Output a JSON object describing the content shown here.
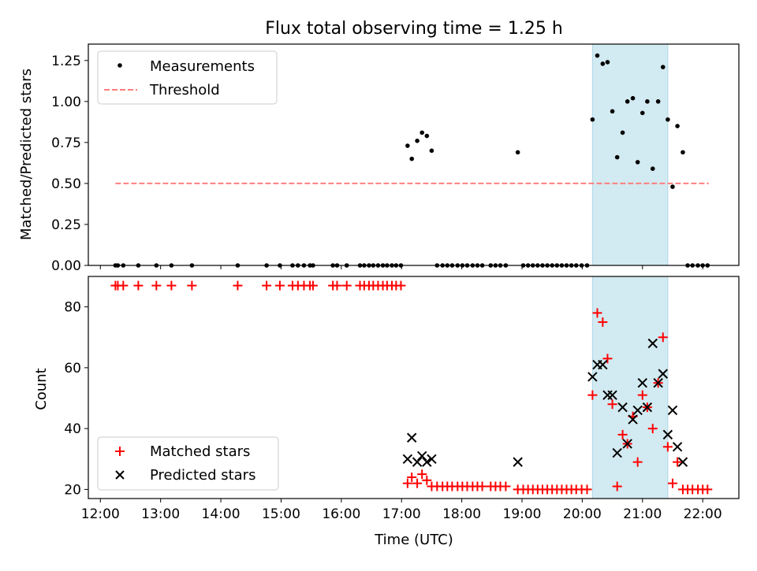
{
  "chart_data": {
    "type": "scatter",
    "title": "Flux total observing time = 1.25 h",
    "xlabel": "Time (UTC)",
    "x_unit": "hour of day (UTC)",
    "xlim": [
      11.8,
      22.6
    ],
    "xticks": [
      12,
      13,
      14,
      15,
      16,
      17,
      18,
      19,
      20,
      21,
      22
    ],
    "xtick_labels": [
      "12:00",
      "13:00",
      "14:00",
      "15:00",
      "16:00",
      "17:00",
      "18:00",
      "19:00",
      "20:00",
      "21:00",
      "22:00"
    ],
    "highlight_band": {
      "x0": 20.17,
      "x1": 21.42,
      "color": "#add8e6"
    },
    "top": {
      "ylabel": "Matched/Predicted stars",
      "ylim": [
        0,
        1.35
      ],
      "yticks": [
        0.0,
        0.25,
        0.5,
        0.75,
        1.0,
        1.25
      ],
      "ytick_labels": [
        "0.00",
        "0.25",
        "0.50",
        "0.75",
        "1.00",
        "1.25"
      ],
      "legend": {
        "location": "top-left",
        "entries": [
          "Measurements",
          "Threshold"
        ]
      },
      "threshold": {
        "name": "Threshold",
        "y": 0.5,
        "x_range": [
          12.25,
          22.1
        ],
        "color": "#ff7f7f"
      },
      "measurements": {
        "name": "Measurements",
        "color": "#000000",
        "x": [
          12.25,
          12.29,
          12.38,
          12.63,
          12.93,
          13.18,
          13.52,
          14.28,
          14.76,
          14.98,
          15.19,
          15.28,
          15.38,
          15.48,
          15.53,
          15.86,
          15.93,
          16.09,
          16.31,
          16.38,
          16.46,
          16.53,
          16.61,
          16.69,
          16.76,
          16.84,
          16.91,
          16.99,
          17.1,
          17.17,
          17.26,
          17.34,
          17.42,
          17.5,
          17.59,
          17.68,
          17.76,
          17.84,
          17.93,
          18.01,
          18.09,
          18.18,
          18.26,
          18.34,
          18.48,
          18.56,
          18.64,
          18.73,
          18.93,
          19.02,
          19.1,
          19.18,
          19.26,
          19.34,
          19.42,
          19.5,
          19.58,
          19.66,
          19.74,
          19.82,
          19.9,
          19.99,
          20.08,
          20.17,
          20.25,
          20.34,
          20.42,
          20.5,
          20.58,
          20.67,
          20.75,
          20.84,
          20.92,
          21.0,
          21.08,
          21.17,
          21.26,
          21.34,
          21.42,
          21.5,
          21.58,
          21.67,
          21.75,
          21.83,
          21.92,
          22.0,
          22.08
        ],
        "y": [
          0,
          0,
          0,
          0,
          0,
          0,
          0,
          0,
          0,
          0,
          0,
          0,
          0,
          0,
          0,
          0,
          0,
          0,
          0,
          0,
          0,
          0,
          0,
          0,
          0,
          0,
          0,
          0,
          0.73,
          0.65,
          0.76,
          0.81,
          0.79,
          0.7,
          0,
          0,
          0,
          0,
          0,
          0,
          0,
          0,
          0,
          0,
          0,
          0,
          0,
          0,
          0.69,
          0,
          0,
          0,
          0,
          0,
          0,
          0,
          0,
          0,
          0,
          0,
          0,
          0,
          0,
          0.89,
          1.28,
          1.23,
          1.24,
          0.94,
          0.66,
          0.81,
          1.0,
          1.02,
          0.63,
          0.93,
          1.0,
          0.59,
          1.0,
          1.21,
          0.89,
          0.48,
          0.85,
          0.69,
          0,
          0,
          0,
          0,
          0
        ]
      }
    },
    "bottom": {
      "ylabel": "Count",
      "ylim": [
        17,
        90
      ],
      "yticks": [
        20,
        40,
        60,
        80
      ],
      "ytick_labels": [
        "20",
        "40",
        "60",
        "80"
      ],
      "legend": {
        "location": "bottom-left",
        "entries": [
          "Matched stars",
          "Predicted stars"
        ]
      },
      "matched": {
        "name": "Matched stars",
        "color": "#ff0000",
        "x": [
          12.25,
          12.29,
          12.38,
          12.63,
          12.93,
          13.18,
          13.52,
          14.28,
          14.76,
          14.98,
          15.19,
          15.28,
          15.38,
          15.48,
          15.53,
          15.86,
          15.93,
          16.09,
          16.31,
          16.38,
          16.46,
          16.53,
          16.61,
          16.69,
          16.76,
          16.84,
          16.91,
          16.99,
          17.1,
          17.17,
          17.26,
          17.34,
          17.42,
          17.5,
          17.59,
          17.68,
          17.76,
          17.84,
          17.93,
          18.01,
          18.09,
          18.18,
          18.26,
          18.34,
          18.48,
          18.56,
          18.64,
          18.73,
          18.93,
          19.02,
          19.1,
          19.18,
          19.26,
          19.34,
          19.42,
          19.5,
          19.58,
          19.66,
          19.74,
          19.82,
          19.9,
          19.99,
          20.08,
          20.17,
          20.25,
          20.34,
          20.42,
          20.5,
          20.58,
          20.67,
          20.75,
          20.84,
          20.92,
          21.0,
          21.08,
          21.17,
          21.26,
          21.34,
          21.42,
          21.5,
          21.58,
          21.67,
          21.75,
          21.83,
          21.92,
          22.0,
          22.08
        ],
        "y": [
          87,
          87,
          87,
          87,
          87,
          87,
          87,
          87,
          87,
          87,
          87,
          87,
          87,
          87,
          87,
          87,
          87,
          87,
          87,
          87,
          87,
          87,
          87,
          87,
          87,
          87,
          87,
          87,
          22,
          24,
          22,
          25,
          23,
          21,
          21,
          21,
          21,
          21,
          21,
          21,
          21,
          21,
          21,
          21,
          21,
          21,
          21,
          21,
          20,
          20,
          20,
          20,
          20,
          20,
          20,
          20,
          20,
          20,
          20,
          20,
          20,
          20,
          20,
          51,
          78,
          75,
          63,
          48,
          21,
          38,
          35,
          44,
          29,
          51,
          47,
          40,
          55,
          70,
          34,
          22,
          29,
          20,
          20,
          20,
          20,
          20,
          20
        ]
      },
      "predicted": {
        "name": "Predicted stars",
        "color": "#000000",
        "x": [
          17.1,
          17.17,
          17.26,
          17.34,
          17.42,
          17.5,
          18.93,
          20.17,
          20.25,
          20.34,
          20.42,
          20.5,
          20.58,
          20.67,
          20.75,
          20.84,
          20.92,
          21.0,
          21.08,
          21.17,
          21.26,
          21.34,
          21.42,
          21.5,
          21.58,
          21.67
        ],
        "y": [
          30,
          37,
          29,
          31,
          29,
          30,
          29,
          57,
          61,
          61,
          51,
          51,
          32,
          47,
          35,
          43,
          46,
          55,
          47,
          68,
          55,
          58,
          38,
          46,
          34,
          29
        ]
      }
    }
  }
}
